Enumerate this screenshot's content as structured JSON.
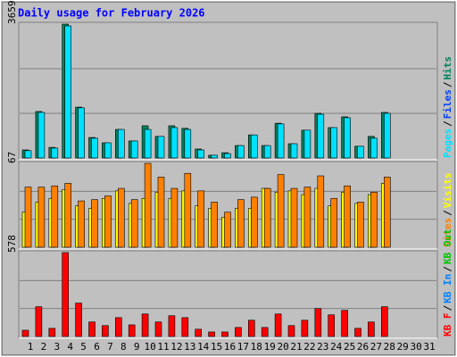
{
  "chart_data": [
    {
      "type": "bar",
      "title": "Daily usage for February 2026",
      "ylim": [
        0,
        3659
      ],
      "yticks": [
        3659
      ],
      "separator": "/",
      "series": [
        {
          "name": "Pages",
          "color": "#00e0ff",
          "values": [
            200,
            1245,
            270,
            3610,
            1370,
            540,
            415,
            780,
            465,
            780,
            590,
            830,
            780,
            220,
            75,
            120,
            340,
            630,
            340,
            930,
            390,
            760,
            1195,
            830,
            1100,
            320,
            540,
            1220,
            null,
            null,
            null
          ]
        },
        {
          "name": "Files",
          "color": "#0040ff",
          "values": [
            null,
            null,
            null,
            null,
            null,
            null,
            null,
            null,
            null,
            null,
            null,
            null,
            null,
            null,
            null,
            null,
            null,
            null,
            null,
            null,
            null,
            null,
            null,
            null,
            null,
            null,
            null,
            null,
            null,
            null,
            null
          ]
        },
        {
          "name": "Hits",
          "color": "#00805c",
          "values": [
            220,
            1270,
            290,
            3659,
            1390,
            560,
            415,
            780,
            465,
            880,
            590,
            880,
            810,
            245,
            75,
            145,
            340,
            630,
            340,
            950,
            390,
            760,
            1220,
            830,
            1125,
            320,
            590,
            1245,
            null,
            null,
            null
          ]
        }
      ]
    },
    {
      "type": "bar",
      "ylim": [
        0,
        67
      ],
      "yticks": [
        67
      ],
      "separator": "/",
      "series": [
        {
          "name": "Sites",
          "color": "#ff8000",
          "values": [
            48,
            48,
            49,
            51,
            37,
            38,
            41,
            47,
            38,
            67,
            56,
            47,
            59,
            45,
            36,
            28,
            38,
            40,
            47,
            58,
            47,
            48,
            57,
            39,
            49,
            36,
            44,
            56,
            null,
            null,
            null
          ]
        },
        {
          "name": "Visits",
          "color": "#ffff00",
          "values": [
            28,
            36,
            39,
            46,
            33,
            31,
            39,
            45,
            35,
            39,
            44,
            39,
            45,
            33,
            31,
            24,
            31,
            31,
            47,
            44,
            45,
            42,
            47,
            33,
            44,
            35,
            42,
            51,
            null,
            null,
            null
          ]
        }
      ]
    },
    {
      "type": "bar",
      "ylim": [
        0,
        578
      ],
      "yticks": [
        578
      ],
      "separator": "/",
      "categories": [
        "1",
        "2",
        "3",
        "4",
        "5",
        "6",
        "7",
        "8",
        "9",
        "10",
        "11",
        "12",
        "13",
        "14",
        "15",
        "16",
        "17",
        "18",
        "19",
        "20",
        "21",
        "22",
        "23",
        "24",
        "25",
        "26",
        "27",
        "28",
        "29",
        "30",
        "31"
      ],
      "category_colors": [
        "#00805c",
        "#0000ff",
        "#0000ff",
        "#0000ff",
        "#0000ff",
        "#0000ff",
        "#00805c",
        "#00805c",
        "#0000ff",
        "#0000ff",
        "#0000ff",
        "#0000ff",
        "#0000ff",
        "#00805c",
        "#00805c",
        "#0000ff",
        "#0000ff",
        "#0000ff",
        "#0000ff",
        "#0000ff",
        "#00805c",
        "#00805c",
        "#0000ff",
        "#0000ff",
        "#0000ff",
        "#0000ff",
        "#0000ff",
        "#00805c",
        "#00805c",
        "#0000ff",
        "#0000ff"
      ],
      "series": [
        {
          "name": "KB F",
          "color": "#ff0000",
          "values": [
            43,
            205,
            56,
            578,
            230,
            100,
            75,
            130,
            80,
            155,
            100,
            143,
            130,
            50,
            31,
            31,
            62,
            112,
            62,
            155,
            75,
            112,
            192,
            149,
            180,
            56,
            100,
            205,
            null,
            null,
            null
          ]
        },
        {
          "name": "KB In",
          "color": "#0080ff",
          "values": [
            null,
            null,
            null,
            null,
            null,
            null,
            null,
            null,
            null,
            null,
            null,
            null,
            null,
            null,
            null,
            null,
            null,
            null,
            null,
            null,
            null,
            null,
            null,
            null,
            null,
            null,
            null,
            null,
            null,
            null,
            null
          ]
        },
        {
          "name": "KB Out",
          "color": "#00c000",
          "values": [
            null,
            null,
            null,
            null,
            null,
            null,
            null,
            null,
            null,
            null,
            null,
            null,
            null,
            null,
            null,
            null,
            null,
            null,
            null,
            null,
            null,
            null,
            null,
            null,
            null,
            null,
            null,
            null,
            null,
            null,
            null
          ]
        }
      ]
    }
  ]
}
